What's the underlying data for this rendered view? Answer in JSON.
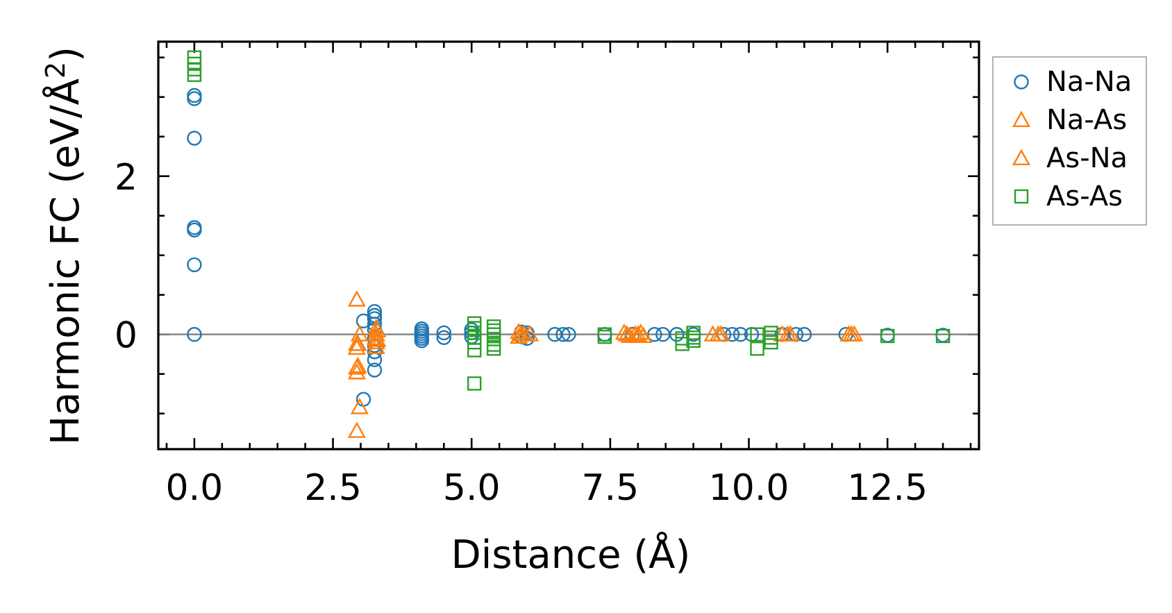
{
  "chart_data": {
    "type": "scatter",
    "title": "",
    "xlabel": "Distance (Å)",
    "ylabel_main": "Harmonic FC (eV/Å",
    "ylabel_sup": "2",
    "ylabel_close": ")",
    "xlim": [
      -0.65,
      14.15
    ],
    "ylim": [
      -1.45,
      3.7
    ],
    "xticks": [
      0,
      2.5,
      5,
      7.5,
      10,
      12.5
    ],
    "xtick_labels": [
      "0.0",
      "2.5",
      "5.0",
      "7.5",
      "10.0",
      "12.5"
    ],
    "yticks": [
      0,
      2
    ],
    "ytick_labels": [
      "0",
      "2"
    ],
    "reference_line_y": 0,
    "grid": false,
    "legend_position": "outside-right-top",
    "series": [
      {
        "name": "Na-Na",
        "marker": "circle",
        "color": "#1f77b4",
        "points": [
          [
            0,
            3.02
          ],
          [
            0,
            2.98
          ],
          [
            0,
            2.48
          ],
          [
            0,
            1.35
          ],
          [
            0,
            1.32
          ],
          [
            0,
            0.88
          ],
          [
            0,
            0.0
          ],
          [
            3.05,
            0.17
          ],
          [
            3.05,
            -0.82
          ],
          [
            3.25,
            0.29
          ],
          [
            3.25,
            0.24
          ],
          [
            3.25,
            0.2
          ],
          [
            3.25,
            0.13
          ],
          [
            3.25,
            0.06
          ],
          [
            3.25,
            -0.05
          ],
          [
            3.25,
            -0.14
          ],
          [
            3.25,
            -0.22
          ],
          [
            3.25,
            -0.32
          ],
          [
            3.25,
            -0.45
          ],
          [
            4.1,
            0.07
          ],
          [
            4.1,
            0.04
          ],
          [
            4.1,
            0.01
          ],
          [
            4.1,
            -0.02
          ],
          [
            4.1,
            -0.05
          ],
          [
            4.1,
            -0.08
          ],
          [
            4.5,
            0.02
          ],
          [
            4.5,
            -0.04
          ],
          [
            5.0,
            0.06
          ],
          [
            5.0,
            0.02
          ],
          [
            5.0,
            -0.03
          ],
          [
            5.9,
            0.03
          ],
          [
            5.9,
            -0.03
          ],
          [
            6.0,
            0.02
          ],
          [
            6.0,
            -0.05
          ],
          [
            6.5,
            0.0
          ],
          [
            6.65,
            0.0
          ],
          [
            6.75,
            0.0
          ],
          [
            7.4,
            0.0
          ],
          [
            7.9,
            0.0
          ],
          [
            8.3,
            0.0
          ],
          [
            8.45,
            0.0
          ],
          [
            8.7,
            0.0
          ],
          [
            9.0,
            0.0
          ],
          [
            9.55,
            0.0
          ],
          [
            9.7,
            0.0
          ],
          [
            9.85,
            0.0
          ],
          [
            10.05,
            0.0
          ],
          [
            10.6,
            0.0
          ],
          [
            10.85,
            0.0
          ],
          [
            11.0,
            0.0
          ],
          [
            11.75,
            0.0
          ],
          [
            12.5,
            -0.01
          ],
          [
            13.5,
            -0.01
          ]
        ]
      },
      {
        "name": "Na-As",
        "marker": "triangle",
        "color": "#ff7f0e",
        "points": [
          [
            2.93,
            0.44
          ],
          [
            2.93,
            -0.12
          ],
          [
            2.93,
            -0.17
          ],
          [
            2.93,
            -0.42
          ],
          [
            2.93,
            -0.48
          ],
          [
            2.93,
            -1.22
          ],
          [
            2.98,
            0.0
          ],
          [
            2.98,
            -0.92
          ],
          [
            3.28,
            0.08
          ],
          [
            3.28,
            0.0
          ],
          [
            3.28,
            -0.05
          ],
          [
            3.28,
            -0.1
          ],
          [
            3.28,
            -0.16
          ],
          [
            5.85,
            0.03
          ],
          [
            5.85,
            -0.03
          ],
          [
            5.95,
            0.0
          ],
          [
            6.05,
            0.0
          ],
          [
            7.75,
            0.02
          ],
          [
            7.85,
            -0.02
          ],
          [
            7.95,
            0.0
          ],
          [
            8.05,
            0.02
          ],
          [
            8.1,
            -0.02
          ],
          [
            9.35,
            0.0
          ],
          [
            9.5,
            0.0
          ],
          [
            10.6,
            0.0
          ],
          [
            10.75,
            0.0
          ],
          [
            11.8,
            0.0
          ],
          [
            11.9,
            0.0
          ]
        ]
      },
      {
        "name": "As-Na",
        "marker": "triangle",
        "color": "#ff7f0e",
        "points": [
          [
            2.95,
            -0.4
          ],
          [
            2.95,
            -0.12
          ],
          [
            3.3,
            0.05
          ],
          [
            3.3,
            -0.07
          ],
          [
            5.9,
            0.0
          ],
          [
            7.8,
            0.0
          ],
          [
            8.0,
            0.0
          ],
          [
            9.45,
            0.0
          ],
          [
            10.7,
            0.0
          ],
          [
            11.85,
            0.0
          ]
        ]
      },
      {
        "name": "As-As",
        "marker": "square",
        "color": "#2ca02c",
        "points": [
          [
            0,
            3.5
          ],
          [
            0,
            3.42
          ],
          [
            0,
            3.35
          ],
          [
            0,
            3.28
          ],
          [
            5.05,
            0.14
          ],
          [
            5.05,
            0.08
          ],
          [
            5.05,
            0.02
          ],
          [
            5.05,
            -0.04
          ],
          [
            5.05,
            -0.1
          ],
          [
            5.05,
            -0.2
          ],
          [
            5.05,
            -0.62
          ],
          [
            5.4,
            0.1
          ],
          [
            5.4,
            0.05
          ],
          [
            5.4,
            0.0
          ],
          [
            5.4,
            -0.06
          ],
          [
            5.4,
            -0.13
          ],
          [
            5.4,
            -0.18
          ],
          [
            7.4,
            0.0
          ],
          [
            7.4,
            -0.03
          ],
          [
            8.8,
            -0.05
          ],
          [
            8.8,
            -0.12
          ],
          [
            9.0,
            0.02
          ],
          [
            9.0,
            -0.04
          ],
          [
            9.0,
            -0.08
          ],
          [
            10.15,
            0.0
          ],
          [
            10.15,
            -0.18
          ],
          [
            10.4,
            0.02
          ],
          [
            10.4,
            -0.04
          ],
          [
            10.4,
            -0.1
          ],
          [
            12.5,
            -0.02
          ],
          [
            13.5,
            -0.02
          ]
        ]
      }
    ]
  }
}
